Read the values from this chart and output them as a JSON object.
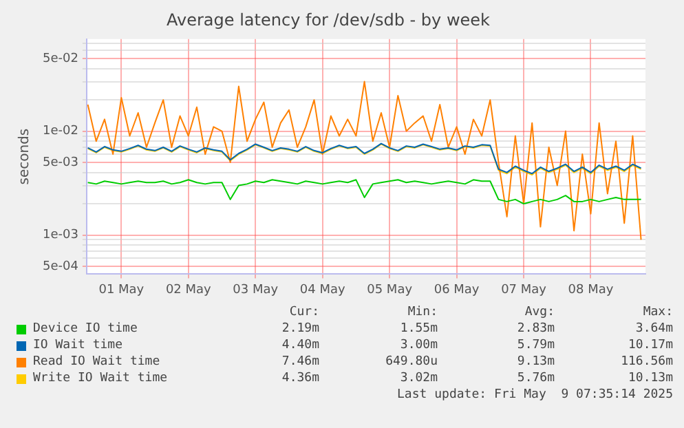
{
  "chart_data": {
    "type": "line",
    "title": "Average latency for /dev/sdb - by week",
    "ylabel": "seconds",
    "log": true,
    "grid": true,
    "legend": "bottom",
    "marker": "none",
    "xlim": [
      "2025-04-30T23:35",
      "2025-05-09T07:35"
    ],
    "xticks": [
      {
        "value": "2025-05-01T12:00",
        "label": "01 May"
      },
      {
        "value": "2025-05-02T12:00",
        "label": "02 May"
      },
      {
        "value": "2025-05-03T12:00",
        "label": "03 May"
      },
      {
        "value": "2025-05-04T12:00",
        "label": "04 May"
      },
      {
        "value": "2025-05-05T12:00",
        "label": "05 May"
      },
      {
        "value": "2025-05-06T12:00",
        "label": "06 May"
      },
      {
        "value": "2025-05-07T12:00",
        "label": "07 May"
      },
      {
        "value": "2025-05-08T12:00",
        "label": "08 May"
      }
    ],
    "ylim": [
      0.00042,
      0.077
    ],
    "yticks": [
      {
        "value": 0.0005,
        "label": "5e-04"
      },
      {
        "value": 0.0006,
        "label": null
      },
      {
        "value": 0.0007,
        "label": null
      },
      {
        "value": 0.0008,
        "label": null
      },
      {
        "value": 0.0009,
        "label": null
      },
      {
        "value": 0.001,
        "label": "1e-03"
      },
      {
        "value": 0.002,
        "label": null
      },
      {
        "value": 0.003,
        "label": null
      },
      {
        "value": 0.004,
        "label": null
      },
      {
        "value": 0.005,
        "label": "5e-03"
      },
      {
        "value": 0.006,
        "label": null
      },
      {
        "value": 0.007,
        "label": null
      },
      {
        "value": 0.008,
        "label": null
      },
      {
        "value": 0.009,
        "label": null
      },
      {
        "value": 0.01,
        "label": "1e-02"
      },
      {
        "value": 0.02,
        "label": null
      },
      {
        "value": 0.03,
        "label": null
      },
      {
        "value": 0.04,
        "label": null
      },
      {
        "value": 0.05,
        "label": "5e-02"
      },
      {
        "value": 0.06,
        "label": null
      },
      {
        "value": 0.07,
        "label": null
      }
    ],
    "x": [
      "2025-05-01T00:00",
      "2025-05-01T03:00",
      "2025-05-01T06:00",
      "2025-05-01T09:00",
      "2025-05-01T12:00",
      "2025-05-01T15:00",
      "2025-05-01T18:00",
      "2025-05-01T21:00",
      "2025-05-02T00:00",
      "2025-05-02T03:00",
      "2025-05-02T06:00",
      "2025-05-02T09:00",
      "2025-05-02T12:00",
      "2025-05-02T15:00",
      "2025-05-02T18:00",
      "2025-05-02T21:00",
      "2025-05-03T00:00",
      "2025-05-03T03:00",
      "2025-05-03T06:00",
      "2025-05-03T09:00",
      "2025-05-03T12:00",
      "2025-05-03T15:00",
      "2025-05-03T18:00",
      "2025-05-03T21:00",
      "2025-05-04T00:00",
      "2025-05-04T03:00",
      "2025-05-04T06:00",
      "2025-05-04T09:00",
      "2025-05-04T12:00",
      "2025-05-04T15:00",
      "2025-05-04T18:00",
      "2025-05-04T21:00",
      "2025-05-05T00:00",
      "2025-05-05T03:00",
      "2025-05-05T06:00",
      "2025-05-05T09:00",
      "2025-05-05T12:00",
      "2025-05-05T15:00",
      "2025-05-05T18:00",
      "2025-05-05T21:00",
      "2025-05-06T00:00",
      "2025-05-06T03:00",
      "2025-05-06T06:00",
      "2025-05-06T09:00",
      "2025-05-06T12:00",
      "2025-05-06T15:00",
      "2025-05-06T18:00",
      "2025-05-06T21:00",
      "2025-05-07T00:00",
      "2025-05-07T03:00",
      "2025-05-07T06:00",
      "2025-05-07T09:00",
      "2025-05-07T12:00",
      "2025-05-07T15:00",
      "2025-05-07T18:00",
      "2025-05-07T21:00",
      "2025-05-08T00:00",
      "2025-05-08T03:00",
      "2025-05-08T06:00",
      "2025-05-08T09:00",
      "2025-05-08T12:00",
      "2025-05-08T15:00",
      "2025-05-08T18:00",
      "2025-05-08T21:00",
      "2025-05-09T00:00",
      "2025-05-09T03:00",
      "2025-05-09T06:00"
    ],
    "series": [
      {
        "name": "Device IO time",
        "color": "#00cc00",
        "values": [
          0.0032,
          0.0031,
          0.0033,
          0.0032,
          0.0031,
          0.0032,
          0.0033,
          0.0032,
          0.0032,
          0.0033,
          0.0031,
          0.0032,
          0.0034,
          0.0032,
          0.0031,
          0.0032,
          0.0032,
          0.0022,
          0.003,
          0.0031,
          0.0033,
          0.0032,
          0.0034,
          0.0033,
          0.0032,
          0.0031,
          0.0033,
          0.0032,
          0.0031,
          0.0032,
          0.0033,
          0.0032,
          0.0034,
          0.0023,
          0.0031,
          0.0032,
          0.0033,
          0.0034,
          0.0032,
          0.0033,
          0.0032,
          0.0031,
          0.0032,
          0.0033,
          0.0032,
          0.0031,
          0.0034,
          0.0033,
          0.0033,
          0.0022,
          0.0021,
          0.0022,
          0.002,
          0.0021,
          0.0022,
          0.0021,
          0.0022,
          0.0024,
          0.0021,
          0.0021,
          0.0022,
          0.0021,
          0.0022,
          0.0023,
          0.0022,
          0.0022,
          0.0022
        ]
      },
      {
        "name": "IO Wait time",
        "color": "#0066b3",
        "values": [
          0.0069,
          0.0063,
          0.0071,
          0.0066,
          0.0064,
          0.0068,
          0.0073,
          0.0067,
          0.0065,
          0.007,
          0.0064,
          0.0072,
          0.0067,
          0.0063,
          0.0069,
          0.0066,
          0.0064,
          0.0053,
          0.0061,
          0.0067,
          0.0075,
          0.007,
          0.0065,
          0.0069,
          0.0067,
          0.0064,
          0.0071,
          0.0065,
          0.0062,
          0.0068,
          0.0073,
          0.0069,
          0.0071,
          0.0061,
          0.0067,
          0.0076,
          0.0069,
          0.0065,
          0.0072,
          0.007,
          0.0075,
          0.0071,
          0.0067,
          0.0069,
          0.0066,
          0.0072,
          0.007,
          0.0074,
          0.0073,
          0.0043,
          0.004,
          0.0046,
          0.0042,
          0.0039,
          0.0045,
          0.0041,
          0.0044,
          0.0048,
          0.0041,
          0.0045,
          0.004,
          0.0047,
          0.0043,
          0.0046,
          0.0042,
          0.0048,
          0.0044
        ]
      },
      {
        "name": "Read IO Wait time",
        "color": "#ff8000",
        "values": [
          0.018,
          0.008,
          0.013,
          0.006,
          0.021,
          0.009,
          0.015,
          0.007,
          0.012,
          0.02,
          0.007,
          0.014,
          0.009,
          0.017,
          0.006,
          0.011,
          0.01,
          0.005,
          0.027,
          0.008,
          0.013,
          0.019,
          0.007,
          0.012,
          0.016,
          0.007,
          0.011,
          0.02,
          0.006,
          0.014,
          0.009,
          0.013,
          0.009,
          0.03,
          0.008,
          0.015,
          0.007,
          0.022,
          0.01,
          0.012,
          0.014,
          0.008,
          0.018,
          0.007,
          0.011,
          0.006,
          0.013,
          0.009,
          0.02,
          0.005,
          0.0015,
          0.009,
          0.002,
          0.012,
          0.0012,
          0.007,
          0.003,
          0.01,
          0.0011,
          0.006,
          0.0016,
          0.012,
          0.0025,
          0.008,
          0.0013,
          0.009,
          0.0009
        ]
      },
      {
        "name": "Write IO Wait time",
        "color": "#ffcc00",
        "values": [
          0.0068,
          0.0062,
          0.007,
          0.0065,
          0.0063,
          0.0067,
          0.0072,
          0.0066,
          0.0064,
          0.0069,
          0.0063,
          0.0071,
          0.0066,
          0.0062,
          0.0068,
          0.0065,
          0.0063,
          0.0052,
          0.006,
          0.0066,
          0.0074,
          0.0069,
          0.0064,
          0.0068,
          0.0066,
          0.0063,
          0.007,
          0.0064,
          0.0061,
          0.0067,
          0.0072,
          0.0068,
          0.007,
          0.006,
          0.0066,
          0.0075,
          0.0068,
          0.0064,
          0.0071,
          0.0069,
          0.0074,
          0.007,
          0.0066,
          0.0068,
          0.0065,
          0.0071,
          0.0069,
          0.0073,
          0.0072,
          0.0042,
          0.0039,
          0.0045,
          0.0041,
          0.0038,
          0.0044,
          0.004,
          0.0043,
          0.0047,
          0.004,
          0.0044,
          0.0039,
          0.0046,
          0.0042,
          0.0045,
          0.0041,
          0.0047,
          0.0043
        ]
      }
    ],
    "annotations": [
      "Cur:",
      "Min:",
      "Avg:",
      "Max:",
      "2.19m",
      "1.55m",
      "2.83m",
      "3.64m",
      "4.40m",
      "3.00m",
      "5.79m",
      "10.17m",
      "7.46m",
      "649.80u",
      "9.13m",
      "116.56m",
      "4.36m",
      "3.02m",
      "5.76m",
      "10.13m",
      "Last update: Fri May  9 07:35:14 2025"
    ]
  }
}
